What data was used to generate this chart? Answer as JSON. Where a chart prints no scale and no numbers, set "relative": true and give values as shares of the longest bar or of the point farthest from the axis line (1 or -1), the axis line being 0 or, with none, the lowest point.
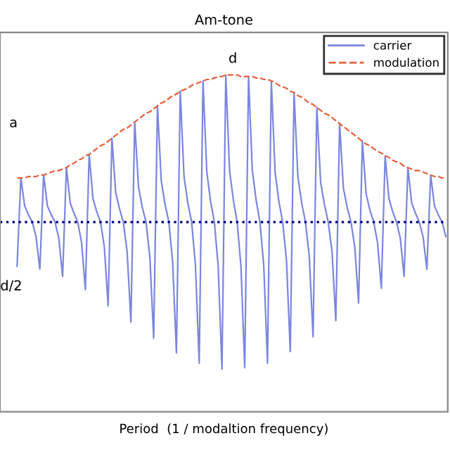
{
  "chart_data": {
    "type": "line",
    "title": "Am-tone",
    "xlabel": "Period  (1 / modaltion frequency)",
    "relative": true,
    "categories": [
      null,
      null,
      null,
      null,
      null,
      null,
      null,
      null,
      null,
      null,
      null,
      null,
      null,
      null,
      null,
      null,
      null,
      null,
      null,
      null,
      null,
      null,
      null,
      null,
      null,
      null,
      null,
      null,
      null,
      null,
      null,
      null,
      null,
      null,
      null,
      null,
      null,
      null,
      null,
      null,
      null,
      null,
      null,
      null,
      null,
      null,
      null,
      null,
      null,
      null,
      null,
      null,
      null,
      null,
      null,
      null,
      null,
      null,
      null,
      null,
      null,
      null,
      null,
      null,
      null,
      null,
      null,
      null,
      null,
      null,
      null,
      null,
      null,
      null,
      null,
      null,
      null,
      null,
      null,
      null,
      null,
      null,
      null,
      null,
      null,
      null,
      null,
      null,
      null,
      null,
      null,
      null,
      null,
      null,
      null,
      null,
      null,
      null,
      null,
      null,
      null,
      null,
      null,
      null,
      null,
      null,
      null,
      null,
      null,
      null,
      null,
      null,
      null,
      null
    ],
    "series": [
      {
        "name": "carrier",
        "color": "#7b86e0",
        "line_style": "solid",
        "values": [
          -0.3,
          0.3,
          0.11,
          0.05,
          0,
          -0.1,
          -0.32,
          0.32,
          0.11,
          0.05,
          0,
          -0.11,
          -0.37,
          0.37,
          0.13,
          0.06,
          0,
          -0.14,
          -0.46,
          0.46,
          0.16,
          0.07,
          0,
          -0.17,
          -0.57,
          0.57,
          0.2,
          0.09,
          0,
          -0.2,
          -0.68,
          0.68,
          0.24,
          0.1,
          0,
          -0.24,
          -0.79,
          0.79,
          0.28,
          0.12,
          0,
          -0.27,
          -0.89,
          0.89,
          0.31,
          0.13,
          0,
          -0.29,
          -0.96,
          0.96,
          0.34,
          0.14,
          0,
          -0.3,
          -1.0,
          1.0,
          0.35,
          0.15,
          0,
          -0.3,
          -0.99,
          0.99,
          0.35,
          0.15,
          0,
          -0.29,
          -0.96,
          0.96,
          0.34,
          0.14,
          0,
          -0.26,
          -0.88,
          0.88,
          0.31,
          0.13,
          0,
          -0.23,
          -0.78,
          0.78,
          0.27,
          0.12,
          0,
          -0.2,
          -0.67,
          0.67,
          0.23,
          0.1,
          0,
          -0.17,
          -0.55,
          0.55,
          0.19,
          0.08,
          0,
          -0.14,
          -0.45,
          0.45,
          0.16,
          0.07,
          0,
          -0.11,
          -0.37,
          0.37,
          0.13,
          0.06,
          0,
          -0.1,
          -0.32,
          0.32,
          0.11,
          0.05,
          0,
          -0.1
        ]
      },
      {
        "name": "modulation",
        "color": "#e8603c",
        "line_style": "dashed",
        "values": [
          0.3,
          0.3,
          0.3,
          0.31,
          0.31,
          0.31,
          0.32,
          0.32,
          0.33,
          0.34,
          0.35,
          0.35,
          0.36,
          0.37,
          0.39,
          0.4,
          0.42,
          0.43,
          0.45,
          0.46,
          0.48,
          0.5,
          0.52,
          0.53,
          0.55,
          0.57,
          0.59,
          0.61,
          0.63,
          0.64,
          0.66,
          0.68,
          0.7,
          0.72,
          0.74,
          0.75,
          0.77,
          0.79,
          0.81,
          0.82,
          0.84,
          0.86,
          0.87,
          0.89,
          0.9,
          0.91,
          0.93,
          0.94,
          0.95,
          0.96,
          0.97,
          0.97,
          0.98,
          0.99,
          0.99,
          1.0,
          1.0,
          1.0,
          1.0,
          0.99,
          0.99,
          0.99,
          0.99,
          0.98,
          0.98,
          0.97,
          0.97,
          0.96,
          0.95,
          0.93,
          0.92,
          0.91,
          0.89,
          0.88,
          0.86,
          0.85,
          0.83,
          0.81,
          0.8,
          0.78,
          0.76,
          0.74,
          0.73,
          0.71,
          0.69,
          0.67,
          0.65,
          0.63,
          0.61,
          0.59,
          0.57,
          0.55,
          0.53,
          0.52,
          0.5,
          0.48,
          0.47,
          0.45,
          0.44,
          0.42,
          0.41,
          0.4,
          0.38,
          0.37,
          0.36,
          0.35,
          0.35,
          0.34,
          0.33,
          0.32,
          0.31,
          0.31,
          0.3,
          0.3
        ]
      }
    ],
    "ref_lines": [
      {
        "axis": "y",
        "value": 0,
        "color": "#000080",
        "line_style": "dotted"
      }
    ],
    "annotations": [
      "a",
      "d",
      "d/2"
    ],
    "legend": "top right",
    "marker": "none"
  }
}
